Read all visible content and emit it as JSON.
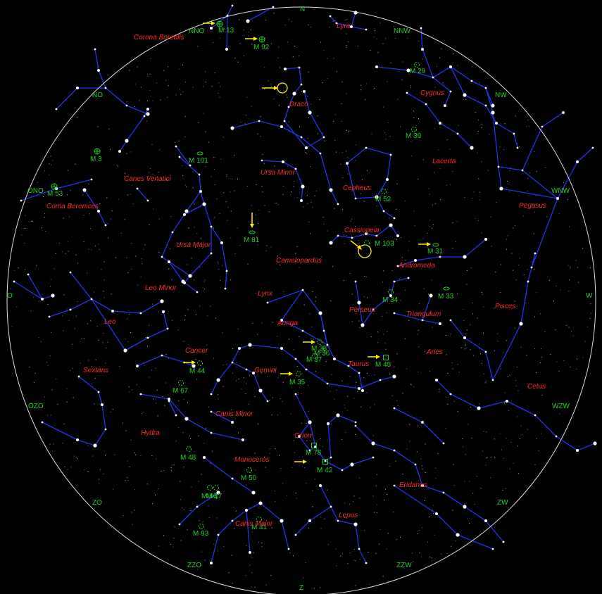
{
  "colors": {
    "background": "#000000",
    "horizon": "#dddddd",
    "constellation_lines": "#2233ee",
    "constellation_names": "#ff2a2a",
    "directions": "#1fd11f",
    "messier": "#1fd11f",
    "arrows": "#ffee00",
    "stars": "#ffffff"
  },
  "directions": [
    {
      "id": "n",
      "label": "N"
    },
    {
      "id": "nnw",
      "label": "NNW"
    },
    {
      "id": "nw",
      "label": "NW"
    },
    {
      "id": "wnw",
      "label": "WNW"
    },
    {
      "id": "w",
      "label": "W"
    },
    {
      "id": "wzw",
      "label": "WZW"
    },
    {
      "id": "zw",
      "label": "ZW"
    },
    {
      "id": "zzw",
      "label": "ZZW"
    },
    {
      "id": "z",
      "label": "Z"
    },
    {
      "id": "zzo",
      "label": "ZZO"
    },
    {
      "id": "zo",
      "label": "ZO"
    },
    {
      "id": "ozo",
      "label": "OZO"
    },
    {
      "id": "o",
      "label": "O"
    },
    {
      "id": "ono",
      "label": "ONO"
    },
    {
      "id": "no",
      "label": "NO"
    },
    {
      "id": "nno",
      "label": "NNO"
    }
  ],
  "constellations": [
    {
      "id": "lyra",
      "label": "Lyra"
    },
    {
      "id": "corona-borealis",
      "label": "Corona Borealis"
    },
    {
      "id": "cygnus",
      "label": "Cygnus"
    },
    {
      "id": "draco",
      "label": "Draco"
    },
    {
      "id": "lacerta",
      "label": "Lacerta"
    },
    {
      "id": "canes-venatici",
      "label": "Canes Venatici"
    },
    {
      "id": "ursa-minor",
      "label": "Ursa Minor"
    },
    {
      "id": "cepheus",
      "label": "Cepheus"
    },
    {
      "id": "pegasus",
      "label": "Pegasus"
    },
    {
      "id": "coma-berenices",
      "label": "Coma Berenices"
    },
    {
      "id": "cassiopeia",
      "label": "Cassiopeia"
    },
    {
      "id": "ursa-major",
      "label": "Ursa Major"
    },
    {
      "id": "camelopardus",
      "label": "Camelopardus"
    },
    {
      "id": "andromeda",
      "label": "Andromeda"
    },
    {
      "id": "leo-minor",
      "label": "Leo Minor"
    },
    {
      "id": "lynx",
      "label": "Lynx"
    },
    {
      "id": "perseus",
      "label": "Perseus"
    },
    {
      "id": "triangulum",
      "label": "Triangulum"
    },
    {
      "id": "pisces",
      "label": "Pisces"
    },
    {
      "id": "leo",
      "label": "Leo"
    },
    {
      "id": "auriga",
      "label": "Auriga"
    },
    {
      "id": "cancer",
      "label": "Cancer"
    },
    {
      "id": "aries",
      "label": "Aries"
    },
    {
      "id": "taurus",
      "label": "Taurus"
    },
    {
      "id": "sextans",
      "label": "Sextans"
    },
    {
      "id": "gemini",
      "label": "Gemini"
    },
    {
      "id": "cetus",
      "label": "Cetus"
    },
    {
      "id": "canis-minor",
      "label": "Canis Minor"
    },
    {
      "id": "hydra",
      "label": "Hydra"
    },
    {
      "id": "orion",
      "label": "Orion"
    },
    {
      "id": "monoceros",
      "label": "Monoceros"
    },
    {
      "id": "eridanus",
      "label": "Eridanus"
    },
    {
      "id": "lepus",
      "label": "Lepus"
    },
    {
      "id": "canis-major",
      "label": "Canis Major"
    }
  ],
  "messier": [
    {
      "id": "m13",
      "label": "M 13",
      "kind": "globular",
      "arrow": true
    },
    {
      "id": "m92",
      "label": "M 92",
      "kind": "globular",
      "arrow": true
    },
    {
      "id": "m29",
      "label": "M 29",
      "kind": "open",
      "arrow": false
    },
    {
      "id": "m39",
      "label": "M 39",
      "kind": "open",
      "arrow": false
    },
    {
      "id": "m3",
      "label": "M 3",
      "kind": "globular",
      "arrow": false
    },
    {
      "id": "m101",
      "label": "M 101",
      "kind": "galaxy",
      "arrow": false
    },
    {
      "id": "m53",
      "label": "M 53",
      "kind": "globular",
      "arrow": false
    },
    {
      "id": "m52",
      "label": "M 52",
      "kind": "open",
      "arrow": false
    },
    {
      "id": "m81",
      "label": "M 81",
      "kind": "galaxy",
      "arrow": true
    },
    {
      "id": "m103",
      "label": "M 103",
      "kind": "open",
      "arrow": false
    },
    {
      "id": "m31",
      "label": "M 31",
      "kind": "galaxy",
      "arrow": true
    },
    {
      "id": "m34",
      "label": "M 34",
      "kind": "open",
      "arrow": false
    },
    {
      "id": "m33",
      "label": "M 33",
      "kind": "galaxy",
      "arrow": false
    },
    {
      "id": "m38",
      "label": "M 38",
      "kind": "open",
      "arrow": true
    },
    {
      "id": "m36",
      "label": "M 36",
      "kind": "open",
      "arrow": false
    },
    {
      "id": "m37",
      "label": "M 37",
      "kind": "open",
      "arrow": false
    },
    {
      "id": "m45",
      "label": "M 45",
      "kind": "nebula",
      "arrow": true
    },
    {
      "id": "m44",
      "label": "M 44",
      "kind": "open",
      "arrow": true
    },
    {
      "id": "m35",
      "label": "M 35",
      "kind": "open",
      "arrow": true
    },
    {
      "id": "m67",
      "label": "M 67",
      "kind": "open",
      "arrow": false
    },
    {
      "id": "m78",
      "label": "M 78",
      "kind": "nebula",
      "arrow": false
    },
    {
      "id": "m42",
      "label": "M 42",
      "kind": "nebula",
      "arrow": true
    },
    {
      "id": "m48",
      "label": "M 48",
      "kind": "open",
      "arrow": false
    },
    {
      "id": "m50",
      "label": "M 50",
      "kind": "open",
      "arrow": false
    },
    {
      "id": "m46",
      "label": "M 46",
      "kind": "open",
      "arrow": false
    },
    {
      "id": "m47",
      "label": "M 47",
      "kind": "open",
      "arrow": false
    },
    {
      "id": "m93",
      "label": "M 93",
      "kind": "open",
      "arrow": false
    },
    {
      "id": "m41",
      "label": "M 41",
      "kind": "open",
      "arrow": false
    }
  ],
  "highlights": [
    {
      "id": "draco-target",
      "color": "#ffee00"
    },
    {
      "id": "cassiopeia-target",
      "color": "#ffee00"
    }
  ]
}
